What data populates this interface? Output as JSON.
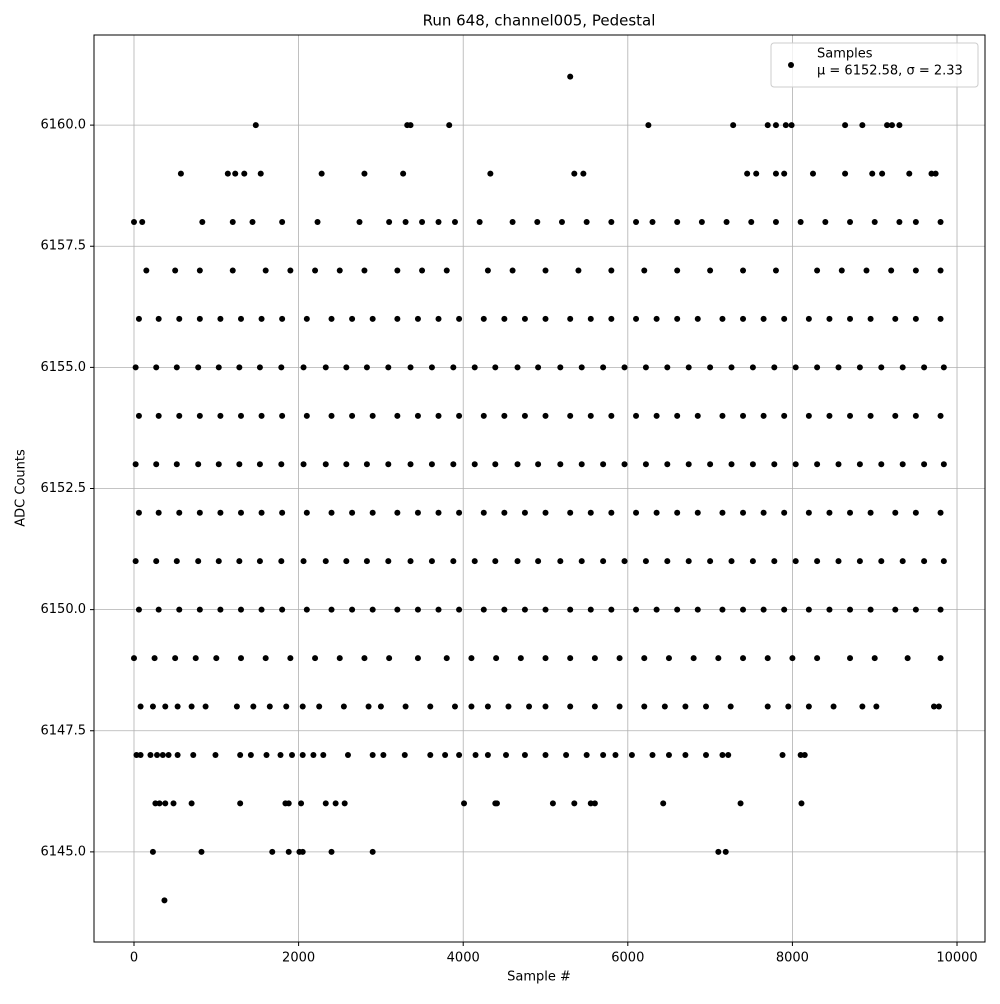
{
  "chart_data": {
    "type": "scatter",
    "title": "Run 648, channel005, Pedestal",
    "x_label": "Sample #",
    "y_label": "ADC Counts",
    "annotation": "μ = 6152.58, σ = 2.33",
    "xlim": [
      -486,
      10340
    ],
    "ylim": [
      6143.14,
      6161.86
    ],
    "xticks": [
      0,
      2000,
      4000,
      6000,
      8000,
      10000
    ],
    "yticks": [
      {
        "value": 6145,
        "label": "6145.0"
      },
      {
        "value": 6147.5,
        "label": "6147.5"
      },
      {
        "value": 6150,
        "label": "6150.0"
      },
      {
        "value": 6152.5,
        "label": "6152.5"
      },
      {
        "value": 6155,
        "label": "6155.0"
      },
      {
        "value": 6157.5,
        "label": "6157.5"
      },
      {
        "value": 6160,
        "label": "6160.0"
      }
    ],
    "grid": true,
    "legend": "upper right",
    "series": [
      {
        "name": "Samples",
        "color": "#000000",
        "x": [
          5300,
          1480,
          3320,
          3360,
          3830,
          6250,
          7280,
          7700,
          7800,
          7920,
          7990,
          8640,
          8850,
          9150,
          9210,
          9300,
          570,
          1140,
          1230,
          1340,
          1540,
          2280,
          2800,
          3270,
          4330,
          5350,
          5460,
          7450,
          7560,
          7800,
          7900,
          8250,
          8640,
          8970,
          9090,
          9420,
          9690,
          9740,
          0,
          100,
          830,
          1200,
          1440,
          1800,
          2230,
          2740,
          3100,
          3300,
          3500,
          3700,
          3900,
          4200,
          4600,
          4900,
          5200,
          5500,
          5800,
          6100,
          6300,
          6600,
          6900,
          7200,
          7500,
          7800,
          8100,
          8400,
          8700,
          9000,
          9300,
          9500,
          9800,
          150,
          500,
          800,
          1200,
          1600,
          1900,
          2200,
          2500,
          2800,
          3200,
          3500,
          3800,
          4300,
          4600,
          5000,
          5400,
          5800,
          6200,
          6600,
          7000,
          7400,
          7800,
          8300,
          8600,
          8900,
          9200,
          9500,
          9800,
          60,
          300,
          550,
          800,
          1050,
          1300,
          1550,
          1800,
          2100,
          2400,
          2650,
          2900,
          3200,
          3450,
          3700,
          3950,
          4250,
          4500,
          4750,
          5000,
          5300,
          5550,
          5800,
          6100,
          6350,
          6600,
          6850,
          7150,
          7400,
          7650,
          7900,
          8200,
          8450,
          8700,
          8950,
          9250,
          9500,
          9800,
          20,
          270,
          520,
          780,
          1030,
          1280,
          1530,
          1790,
          2060,
          2330,
          2580,
          2830,
          3090,
          3360,
          3620,
          3880,
          4140,
          4390,
          4660,
          4910,
          5180,
          5440,
          5700,
          5960,
          6220,
          6480,
          6740,
          7000,
          7260,
          7520,
          7780,
          8040,
          8300,
          8560,
          8820,
          9080,
          9340,
          9600,
          9840,
          60,
          300,
          550,
          800,
          1050,
          1300,
          1550,
          1800,
          2100,
          2400,
          2650,
          2900,
          3200,
          3450,
          3700,
          3950,
          4250,
          4500,
          4750,
          5000,
          5300,
          5550,
          5800,
          6100,
          6350,
          6600,
          6850,
          7150,
          7400,
          7650,
          7900,
          8200,
          8450,
          8700,
          8950,
          9250,
          9500,
          9800,
          20,
          270,
          520,
          780,
          1030,
          1280,
          1530,
          1790,
          2060,
          2330,
          2580,
          2830,
          3090,
          3360,
          3620,
          3880,
          4140,
          4390,
          4660,
          4910,
          5180,
          5440,
          5700,
          5960,
          6220,
          6480,
          6740,
          7000,
          7260,
          7520,
          7780,
          8040,
          8300,
          8560,
          8820,
          9080,
          9340,
          9600,
          9840,
          60,
          300,
          550,
          800,
          1050,
          1300,
          1550,
          1800,
          2100,
          2400,
          2650,
          2900,
          3200,
          3450,
          3700,
          3950,
          4250,
          4500,
          4750,
          5000,
          5300,
          5550,
          5800,
          6100,
          6350,
          6600,
          6850,
          7150,
          7400,
          7650,
          7900,
          8200,
          8450,
          8700,
          8950,
          9250,
          9500,
          9800,
          20,
          270,
          520,
          780,
          1030,
          1280,
          1530,
          1790,
          2060,
          2330,
          2580,
          2830,
          3090,
          3360,
          3620,
          3880,
          4140,
          4390,
          4660,
          4910,
          5180,
          5440,
          5700,
          5960,
          6220,
          6480,
          6740,
          7000,
          7260,
          7520,
          7780,
          8040,
          8300,
          8560,
          8820,
          9080,
          9340,
          9600,
          9840,
          60,
          300,
          550,
          800,
          1050,
          1300,
          1550,
          1800,
          2100,
          2400,
          2650,
          2900,
          3200,
          3450,
          3700,
          3950,
          4250,
          4500,
          4750,
          5000,
          5300,
          5550,
          5800,
          6100,
          6350,
          6600,
          6850,
          7150,
          7400,
          7650,
          7900,
          8200,
          8450,
          8700,
          8950,
          9250,
          9500,
          9800,
          0,
          250,
          500,
          750,
          1000,
          1300,
          1600,
          1900,
          2200,
          2500,
          2800,
          3100,
          3450,
          3800,
          4100,
          4400,
          4700,
          5000,
          5300,
          5600,
          5900,
          6200,
          6500,
          6800,
          7100,
          7400,
          7700,
          8000,
          8300,
          8700,
          9000,
          9400,
          9800,
          80,
          230,
          380,
          530,
          700,
          870,
          1250,
          1450,
          1650,
          1850,
          2050,
          2250,
          2550,
          2850,
          3000,
          3300,
          3600,
          3900,
          4100,
          4300,
          4550,
          4800,
          5000,
          5300,
          5600,
          5900,
          6200,
          6450,
          6700,
          6950,
          7250,
          7700,
          7950,
          8200,
          8500,
          8850,
          9020,
          9720,
          9780,
          30,
          80,
          200,
          280,
          350,
          420,
          530,
          720,
          990,
          1290,
          1420,
          1610,
          1780,
          1920,
          2050,
          2180,
          2300,
          2600,
          2900,
          3030,
          3290,
          3600,
          3780,
          3950,
          4150,
          4300,
          4520,
          4750,
          5000,
          5250,
          5500,
          5700,
          5850,
          6050,
          6300,
          6500,
          6700,
          6950,
          7150,
          7220,
          7880,
          8100,
          8150,
          260,
          310,
          380,
          480,
          700,
          1290,
          1840,
          1880,
          2030,
          2330,
          2450,
          2560,
          4010,
          4390,
          4410,
          5090,
          5350,
          5550,
          5600,
          6430,
          7370,
          8110,
          230,
          820,
          1680,
          1880,
          2010,
          2050,
          2400,
          2900,
          7100,
          7190,
          370
        ],
        "values": [
          6161,
          6160,
          6160,
          6160,
          6160,
          6160,
          6160,
          6160,
          6160,
          6160,
          6160,
          6160,
          6160,
          6160,
          6160,
          6160,
          6159,
          6159,
          6159,
          6159,
          6159,
          6159,
          6159,
          6159,
          6159,
          6159,
          6159,
          6159,
          6159,
          6159,
          6159,
          6159,
          6159,
          6159,
          6159,
          6159,
          6159,
          6159,
          6158,
          6158,
          6158,
          6158,
          6158,
          6158,
          6158,
          6158,
          6158,
          6158,
          6158,
          6158,
          6158,
          6158,
          6158,
          6158,
          6158,
          6158,
          6158,
          6158,
          6158,
          6158,
          6158,
          6158,
          6158,
          6158,
          6158,
          6158,
          6158,
          6158,
          6158,
          6158,
          6158,
          6157,
          6157,
          6157,
          6157,
          6157,
          6157,
          6157,
          6157,
          6157,
          6157,
          6157,
          6157,
          6157,
          6157,
          6157,
          6157,
          6157,
          6157,
          6157,
          6157,
          6157,
          6157,
          6157,
          6157,
          6157,
          6157,
          6157,
          6157,
          6156,
          6156,
          6156,
          6156,
          6156,
          6156,
          6156,
          6156,
          6156,
          6156,
          6156,
          6156,
          6156,
          6156,
          6156,
          6156,
          6156,
          6156,
          6156,
          6156,
          6156,
          6156,
          6156,
          6156,
          6156,
          6156,
          6156,
          6156,
          6156,
          6156,
          6156,
          6156,
          6156,
          6156,
          6156,
          6156,
          6156,
          6156,
          6155,
          6155,
          6155,
          6155,
          6155,
          6155,
          6155,
          6155,
          6155,
          6155,
          6155,
          6155,
          6155,
          6155,
          6155,
          6155,
          6155,
          6155,
          6155,
          6155,
          6155,
          6155,
          6155,
          6155,
          6155,
          6155,
          6155,
          6155,
          6155,
          6155,
          6155,
          6155,
          6155,
          6155,
          6155,
          6155,
          6155,
          6155,
          6155,
          6154,
          6154,
          6154,
          6154,
          6154,
          6154,
          6154,
          6154,
          6154,
          6154,
          6154,
          6154,
          6154,
          6154,
          6154,
          6154,
          6154,
          6154,
          6154,
          6154,
          6154,
          6154,
          6154,
          6154,
          6154,
          6154,
          6154,
          6154,
          6154,
          6154,
          6154,
          6154,
          6154,
          6154,
          6154,
          6154,
          6154,
          6154,
          6153,
          6153,
          6153,
          6153,
          6153,
          6153,
          6153,
          6153,
          6153,
          6153,
          6153,
          6153,
          6153,
          6153,
          6153,
          6153,
          6153,
          6153,
          6153,
          6153,
          6153,
          6153,
          6153,
          6153,
          6153,
          6153,
          6153,
          6153,
          6153,
          6153,
          6153,
          6153,
          6153,
          6153,
          6153,
          6153,
          6153,
          6153,
          6153,
          6152,
          6152,
          6152,
          6152,
          6152,
          6152,
          6152,
          6152,
          6152,
          6152,
          6152,
          6152,
          6152,
          6152,
          6152,
          6152,
          6152,
          6152,
          6152,
          6152,
          6152,
          6152,
          6152,
          6152,
          6152,
          6152,
          6152,
          6152,
          6152,
          6152,
          6152,
          6152,
          6152,
          6152,
          6152,
          6152,
          6152,
          6152,
          6151,
          6151,
          6151,
          6151,
          6151,
          6151,
          6151,
          6151,
          6151,
          6151,
          6151,
          6151,
          6151,
          6151,
          6151,
          6151,
          6151,
          6151,
          6151,
          6151,
          6151,
          6151,
          6151,
          6151,
          6151,
          6151,
          6151,
          6151,
          6151,
          6151,
          6151,
          6151,
          6151,
          6151,
          6151,
          6151,
          6151,
          6151,
          6151,
          6150,
          6150,
          6150,
          6150,
          6150,
          6150,
          6150,
          6150,
          6150,
          6150,
          6150,
          6150,
          6150,
          6150,
          6150,
          6150,
          6150,
          6150,
          6150,
          6150,
          6150,
          6150,
          6150,
          6150,
          6150,
          6150,
          6150,
          6150,
          6150,
          6150,
          6150,
          6150,
          6150,
          6150,
          6150,
          6150,
          6150,
          6150,
          6149,
          6149,
          6149,
          6149,
          6149,
          6149,
          6149,
          6149,
          6149,
          6149,
          6149,
          6149,
          6149,
          6149,
          6149,
          6149,
          6149,
          6149,
          6149,
          6149,
          6149,
          6149,
          6149,
          6149,
          6149,
          6149,
          6149,
          6149,
          6149,
          6149,
          6149,
          6149,
          6149,
          6148,
          6148,
          6148,
          6148,
          6148,
          6148,
          6148,
          6148,
          6148,
          6148,
          6148,
          6148,
          6148,
          6148,
          6148,
          6148,
          6148,
          6148,
          6148,
          6148,
          6148,
          6148,
          6148,
          6148,
          6148,
          6148,
          6148,
          6148,
          6148,
          6148,
          6148,
          6148,
          6148,
          6148,
          6148,
          6148,
          6148,
          6148,
          6148,
          6147,
          6147,
          6147,
          6147,
          6147,
          6147,
          6147,
          6147,
          6147,
          6147,
          6147,
          6147,
          6147,
          6147,
          6147,
          6147,
          6147,
          6147,
          6147,
          6147,
          6147,
          6147,
          6147,
          6147,
          6147,
          6147,
          6147,
          6147,
          6147,
          6147,
          6147,
          6147,
          6147,
          6147,
          6147,
          6147,
          6147,
          6147,
          6147,
          6147,
          6147,
          6147,
          6147,
          6146,
          6146,
          6146,
          6146,
          6146,
          6146,
          6146,
          6146,
          6146,
          6146,
          6146,
          6146,
          6146,
          6146,
          6146,
          6146,
          6146,
          6146,
          6146,
          6146,
          6146,
          6146,
          6145,
          6145,
          6145,
          6145,
          6145,
          6145,
          6145,
          6145,
          6145,
          6145,
          6144
        ]
      }
    ]
  }
}
